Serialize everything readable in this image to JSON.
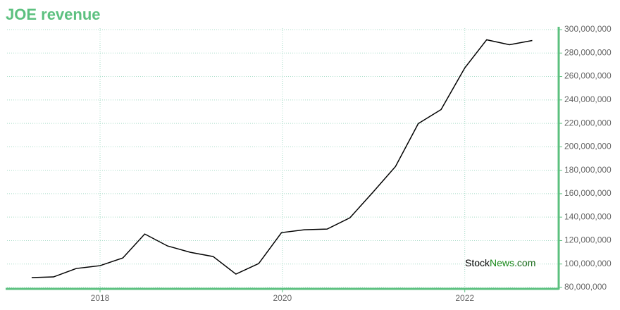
{
  "chart_data": {
    "type": "line",
    "title": "JOE revenue",
    "x": [
      2017.25,
      2017.49,
      2017.74,
      2018.0,
      2018.25,
      2018.49,
      2018.74,
      2018.99,
      2019.24,
      2019.49,
      2019.74,
      2019.99,
      2020.24,
      2020.49,
      2020.74,
      2020.99,
      2021.24,
      2021.49,
      2021.74,
      2022.0,
      2022.24,
      2022.49,
      2022.74
    ],
    "series": [
      {
        "name": "revenue",
        "color": "#000000",
        "values": [
          88400000,
          89000000,
          96200000,
          98600000,
          105200000,
          125600000,
          115400000,
          110000000,
          106400000,
          91400000,
          100400000,
          126800000,
          129200000,
          129800000,
          139400000,
          161000000,
          183200000,
          219800000,
          231800000,
          267300000,
          291300000,
          287100000,
          290700000
        ]
      }
    ],
    "xlim": [
      2016.98,
      2023.03
    ],
    "xticks": [
      2018,
      2020,
      2022
    ],
    "ylim": [
      78800000,
      301200000
    ],
    "yticks": [
      {
        "value": 80000000,
        "label": "80,000,000"
      },
      {
        "value": 100000000,
        "label": "100,000,000"
      },
      {
        "value": 120000000,
        "label": "120,000,000"
      },
      {
        "value": 140000000,
        "label": "140,000,000"
      },
      {
        "value": 160000000,
        "label": "160,000,000"
      },
      {
        "value": 180000000,
        "label": "180,000,000"
      },
      {
        "value": 200000000,
        "label": "200,000,000"
      },
      {
        "value": 220000000,
        "label": "220,000,000"
      },
      {
        "value": 240000000,
        "label": "240,000,000"
      },
      {
        "value": 260000000,
        "label": "260,000,000"
      },
      {
        "value": 280000000,
        "label": "280,000,000"
      },
      {
        "value": 300000000,
        "label": "300,000,000"
      }
    ],
    "grid": true,
    "axis_color": "#5cc07f",
    "grid_color": "#a8dcc8",
    "watermark": [
      "Stock",
      "News",
      ".com"
    ]
  }
}
